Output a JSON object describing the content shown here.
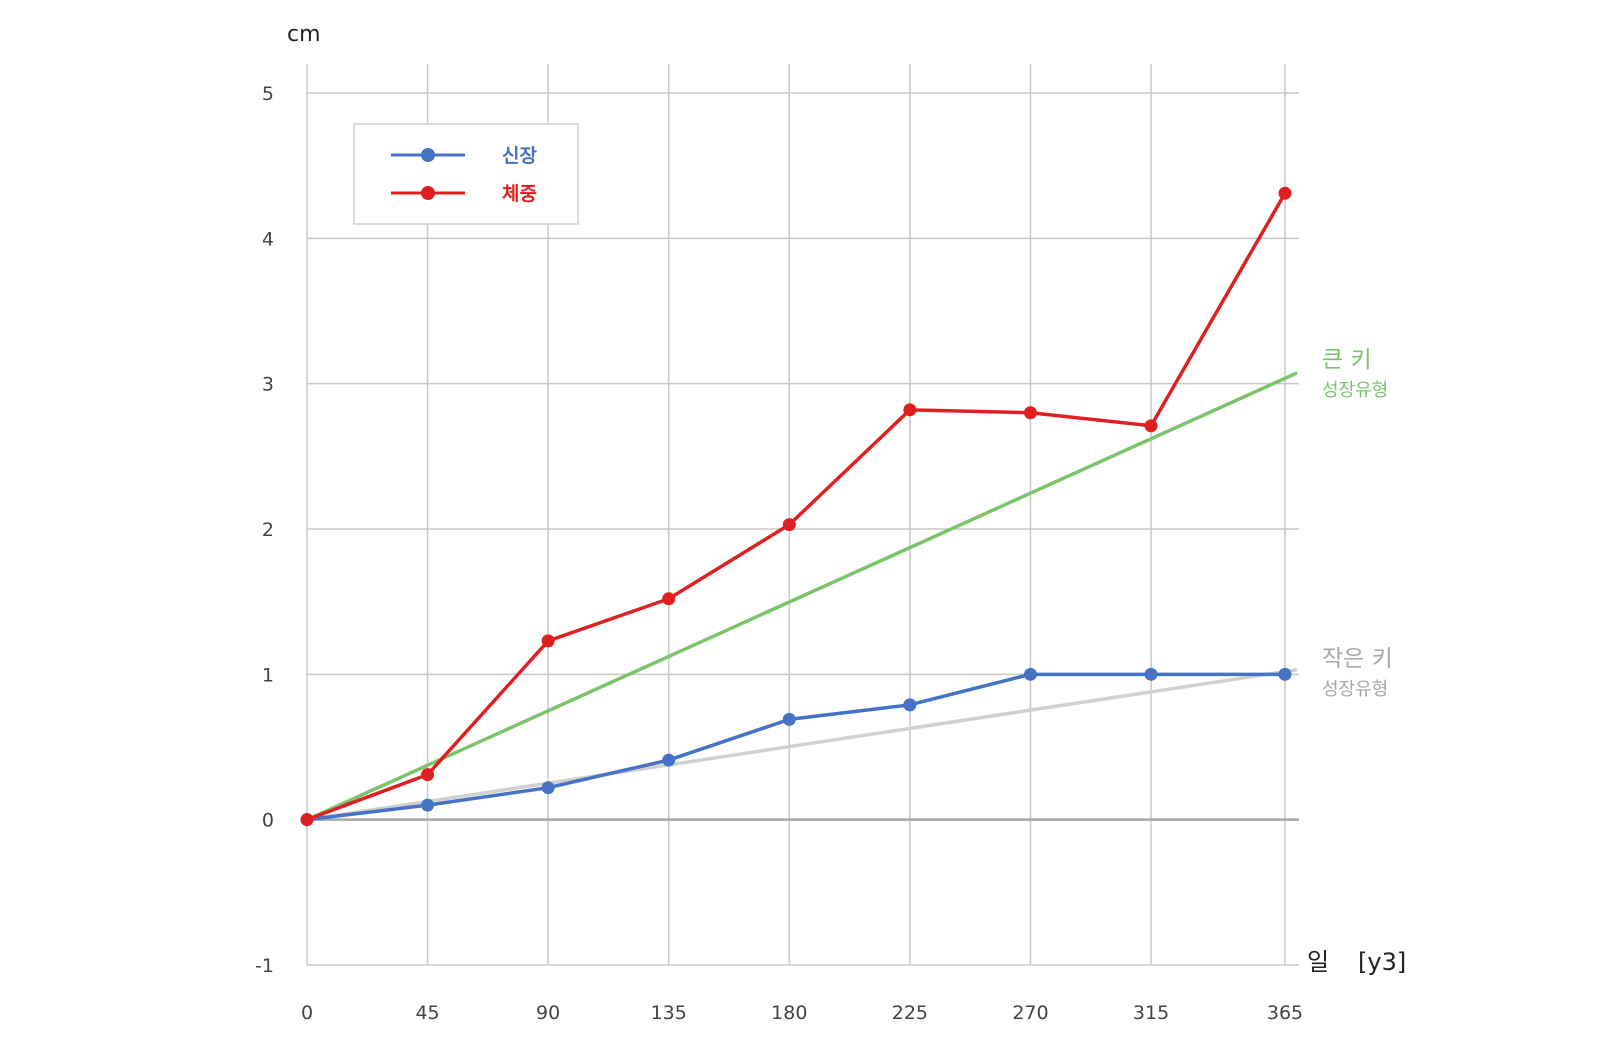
{
  "chart_data": {
    "type": "line",
    "y_unit_label": "cm",
    "x_axis_label": "일",
    "x_axis_tag": "[y3]",
    "x_ticks": [
      0,
      45,
      90,
      135,
      180,
      225,
      270,
      315,
      365
    ],
    "y_ticks": [
      -1,
      0,
      1,
      2,
      3,
      4,
      5
    ],
    "xlim": [
      0,
      365
    ],
    "ylim": [
      -1,
      5
    ],
    "grid": true,
    "legend_position": "top-left",
    "series": [
      {
        "name": "신장",
        "color": "#4472c4",
        "x": [
          0,
          45,
          90,
          135,
          180,
          225,
          270,
          315,
          365
        ],
        "y": [
          0,
          0.1,
          0.22,
          0.41,
          0.69,
          0.79,
          1.0,
          1.0,
          1.0
        ]
      },
      {
        "name": "체중",
        "color": "#e02020",
        "x": [
          0,
          45,
          90,
          135,
          180,
          225,
          270,
          315,
          365
        ],
        "y": [
          0,
          0.31,
          1.23,
          1.52,
          2.03,
          2.82,
          2.8,
          2.71,
          4.31
        ]
      }
    ],
    "reference_lines": [
      {
        "title": "큰 키",
        "subtitle": "성장유형",
        "color": "#7cc46c",
        "x": [
          0,
          369
        ],
        "y": [
          0,
          3.07
        ]
      },
      {
        "title": "작은 키",
        "subtitle": "성장유형",
        "color": "#d0d0d0",
        "label_color": "#a8a8a8",
        "x": [
          0,
          369
        ],
        "y": [
          0,
          1.03
        ]
      }
    ]
  }
}
